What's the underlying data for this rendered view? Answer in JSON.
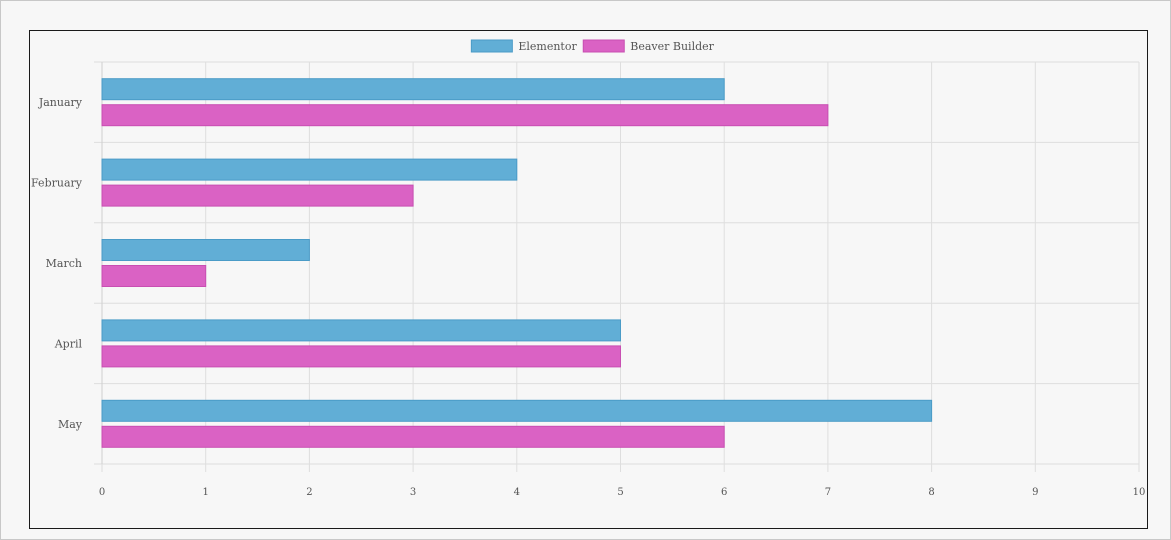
{
  "chart_data": {
    "type": "bar",
    "orientation": "horizontal",
    "categories": [
      "January",
      "February",
      "March",
      "April",
      "May"
    ],
    "series": [
      {
        "name": "Elementor",
        "values": [
          6,
          4,
          2,
          5,
          8
        ],
        "color": "#61aed6",
        "border": "#4a9bc7"
      },
      {
        "name": "Beaver Builder",
        "values": [
          7,
          3,
          1,
          5,
          6
        ],
        "color": "#da62c4",
        "border": "#c84fb2"
      }
    ],
    "xlim": [
      0,
      10
    ],
    "xticks": [
      "0",
      "1",
      "2",
      "3",
      "4",
      "5",
      "6",
      "7",
      "8",
      "9",
      "10"
    ],
    "grid": true,
    "legend": "top-center",
    "title": "",
    "xlabel": "",
    "ylabel": ""
  }
}
